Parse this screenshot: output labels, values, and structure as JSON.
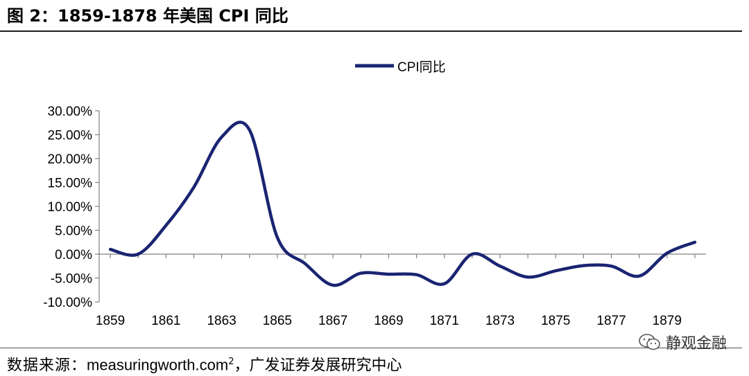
{
  "header": {
    "title": "图 2：1859-1878 年美国 CPI 同比"
  },
  "footer": {
    "source_label": "数据来源：",
    "source_site": "measuringworth.com",
    "source_sup": "2",
    "source_org": "，广发证券发展研究中心"
  },
  "watermark": {
    "text": "静观金融",
    "icon": "wechat-icon"
  },
  "colors": {
    "series": "#1a2472",
    "axis": "#7f7f7f",
    "rule": "#1c1c1c"
  },
  "chart_data": {
    "type": "line",
    "legend": "top-center",
    "grid": false,
    "xlabel": "",
    "ylabel": "",
    "ylim": [
      -10,
      30
    ],
    "y_ticks": [
      30,
      25,
      20,
      15,
      10,
      5,
      0,
      -5,
      -10
    ],
    "y_tick_labels": [
      "30.00%",
      "25.00%",
      "20.00%",
      "15.00%",
      "10.00%",
      "5.00%",
      "0.00%",
      "-5.00%",
      "-10.00%"
    ],
    "x_tick_labels": [
      "1859",
      "1861",
      "1863",
      "1865",
      "1867",
      "1869",
      "1871",
      "1873",
      "1875",
      "1877",
      "1879"
    ],
    "x": [
      1859,
      1860,
      1861,
      1862,
      1863,
      1864,
      1865,
      1866,
      1867,
      1868,
      1869,
      1870,
      1871,
      1872,
      1873,
      1874,
      1875,
      1876,
      1877,
      1878,
      1879,
      1880
    ],
    "series": [
      {
        "name": "CPI同比",
        "values": [
          1.0,
          0.0,
          6.0,
          14.0,
          24.5,
          26.0,
          3.5,
          -2.0,
          -6.5,
          -4.0,
          -4.2,
          -4.3,
          -6.2,
          0.0,
          -2.5,
          -4.8,
          -3.5,
          -2.4,
          -2.5,
          -4.6,
          0.2,
          2.5
        ]
      }
    ]
  }
}
